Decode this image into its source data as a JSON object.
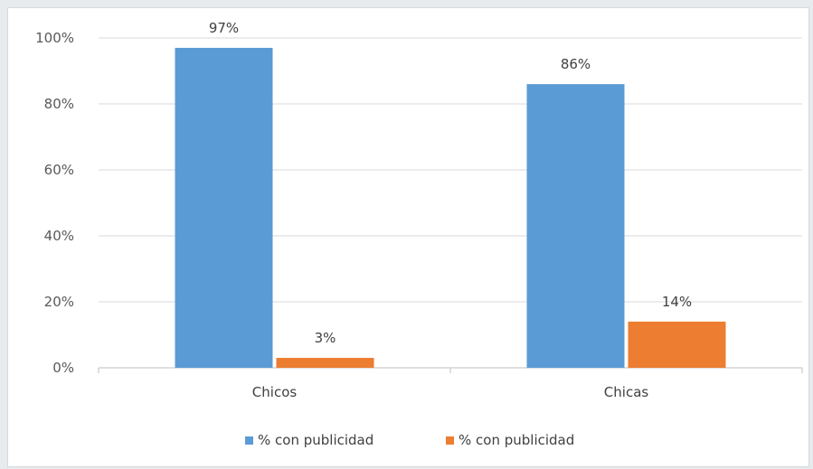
{
  "chart_data": {
    "type": "bar",
    "categories": [
      "Chicos",
      "Chicas"
    ],
    "series": [
      {
        "name": "% con publicidad",
        "values": [
          97,
          86
        ],
        "labels": [
          "97%",
          "86%"
        ],
        "color": "#5b9bd5"
      },
      {
        "name": "% con publicidad",
        "values": [
          3,
          14
        ],
        "labels": [
          "3%",
          "14%"
        ],
        "color": "#ed7d31"
      }
    ],
    "ylim": [
      0,
      100
    ],
    "yticks": [
      0,
      20,
      40,
      60,
      80,
      100
    ],
    "ytick_labels": [
      "0%",
      "20%",
      "40%",
      "60%",
      "80%",
      "100%"
    ],
    "grid": true,
    "legend_position": "bottom",
    "title": "",
    "xlabel": "",
    "ylabel": ""
  },
  "colors": {
    "gridline": "#d9d9d9",
    "axis": "#bfbfbf"
  }
}
